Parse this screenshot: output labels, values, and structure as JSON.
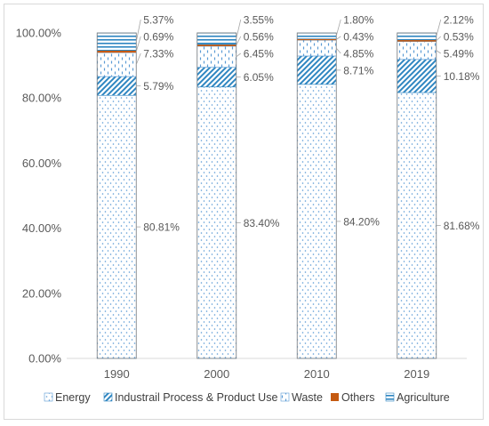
{
  "chart_data": {
    "type": "bar",
    "stacked": true,
    "percent_axis": true,
    "categories": [
      "1990",
      "2000",
      "2010",
      "2019"
    ],
    "series": [
      {
        "name": "Energy",
        "values": [
          80.81,
          83.4,
          84.2,
          81.68
        ],
        "color": "#5b9bd5",
        "pattern": "dots"
      },
      {
        "name": "Industrail Process & Product Use",
        "values": [
          5.79,
          6.05,
          8.71,
          10.18
        ],
        "color": "#2e86c1",
        "pattern": "diagonal"
      },
      {
        "name": "Waste",
        "values": [
          7.33,
          6.45,
          4.85,
          5.49
        ],
        "color": "#5b9bd5",
        "pattern": "dashes"
      },
      {
        "name": "Others",
        "values": [
          0.69,
          0.56,
          0.43,
          0.53
        ],
        "color": "#c55a11",
        "pattern": "solid"
      },
      {
        "name": "Agriculture",
        "values": [
          5.37,
          3.55,
          1.8,
          2.12
        ],
        "color": "#2e86c1",
        "pattern": "horizontal"
      }
    ],
    "data_labels": [
      [
        "80.81%",
        "5.79%",
        "7.33%",
        "0.69%",
        "5.37%"
      ],
      [
        "83.40%",
        "6.05%",
        "6.45%",
        "0.56%",
        "3.55%"
      ],
      [
        "84.20%",
        "8.71%",
        "4.85%",
        "0.43%",
        "1.80%"
      ],
      [
        "81.68%",
        "10.18%",
        "5.49%",
        "0.53%",
        "2.12%"
      ]
    ],
    "ylim": [
      0,
      100
    ],
    "yticks": [
      "0.00%",
      "20.00%",
      "40.00%",
      "60.00%",
      "80.00%",
      "100.00%"
    ],
    "title": "",
    "xlabel": "",
    "ylabel": "",
    "grid": false,
    "legend_position": "bottom"
  }
}
